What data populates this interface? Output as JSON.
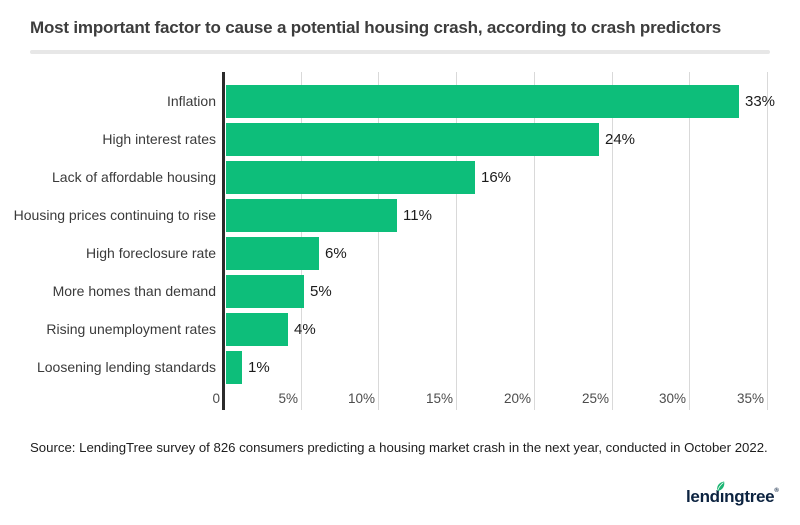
{
  "header": {
    "title": "Most important factor to cause a potential housing crash, according to crash predictors"
  },
  "chart_data": {
    "type": "bar",
    "orientation": "horizontal",
    "title": "Most important factor to cause a potential housing crash, according to crash predictors",
    "categories": [
      "Inflation",
      "High interest rates",
      "Lack of affordable housing",
      "Housing prices continuing to rise",
      "High foreclosure rate",
      "More homes than demand",
      "Rising unemployment rates",
      "Loosening lending standards"
    ],
    "values": [
      33,
      24,
      16,
      11,
      6,
      5,
      4,
      1
    ],
    "value_labels": [
      "33%",
      "24%",
      "16%",
      "11%",
      "6%",
      "5%",
      "4%",
      "1%"
    ],
    "x_ticks": [
      "0",
      "5%",
      "10%",
      "15%",
      "20%",
      "25%",
      "30%",
      "35%"
    ],
    "x_tick_values": [
      0,
      5,
      10,
      15,
      20,
      25,
      30,
      35
    ],
    "xlim": [
      0,
      35
    ],
    "unit": "%",
    "grid": "vertical-only",
    "legend": "none",
    "xlabel": "",
    "ylabel": ""
  },
  "colors": {
    "bar": "#0dbe7a",
    "axis_line": "#2b2b2b",
    "gridline": "#d9d9d9",
    "title_text": "#3d3d3d",
    "divider": "#e7e7e7",
    "logo_navy": "#0c2340",
    "logo_leaf": "#1cb573"
  },
  "footer": {
    "source": "Source: LendingTree survey of 826 consumers predicting a housing market crash in the next year, conducted in October 2022."
  },
  "logo": {
    "text": "lendingtree",
    "display_text": "lendıngtree",
    "registered_mark": "®",
    "icon": "leaf-icon"
  }
}
